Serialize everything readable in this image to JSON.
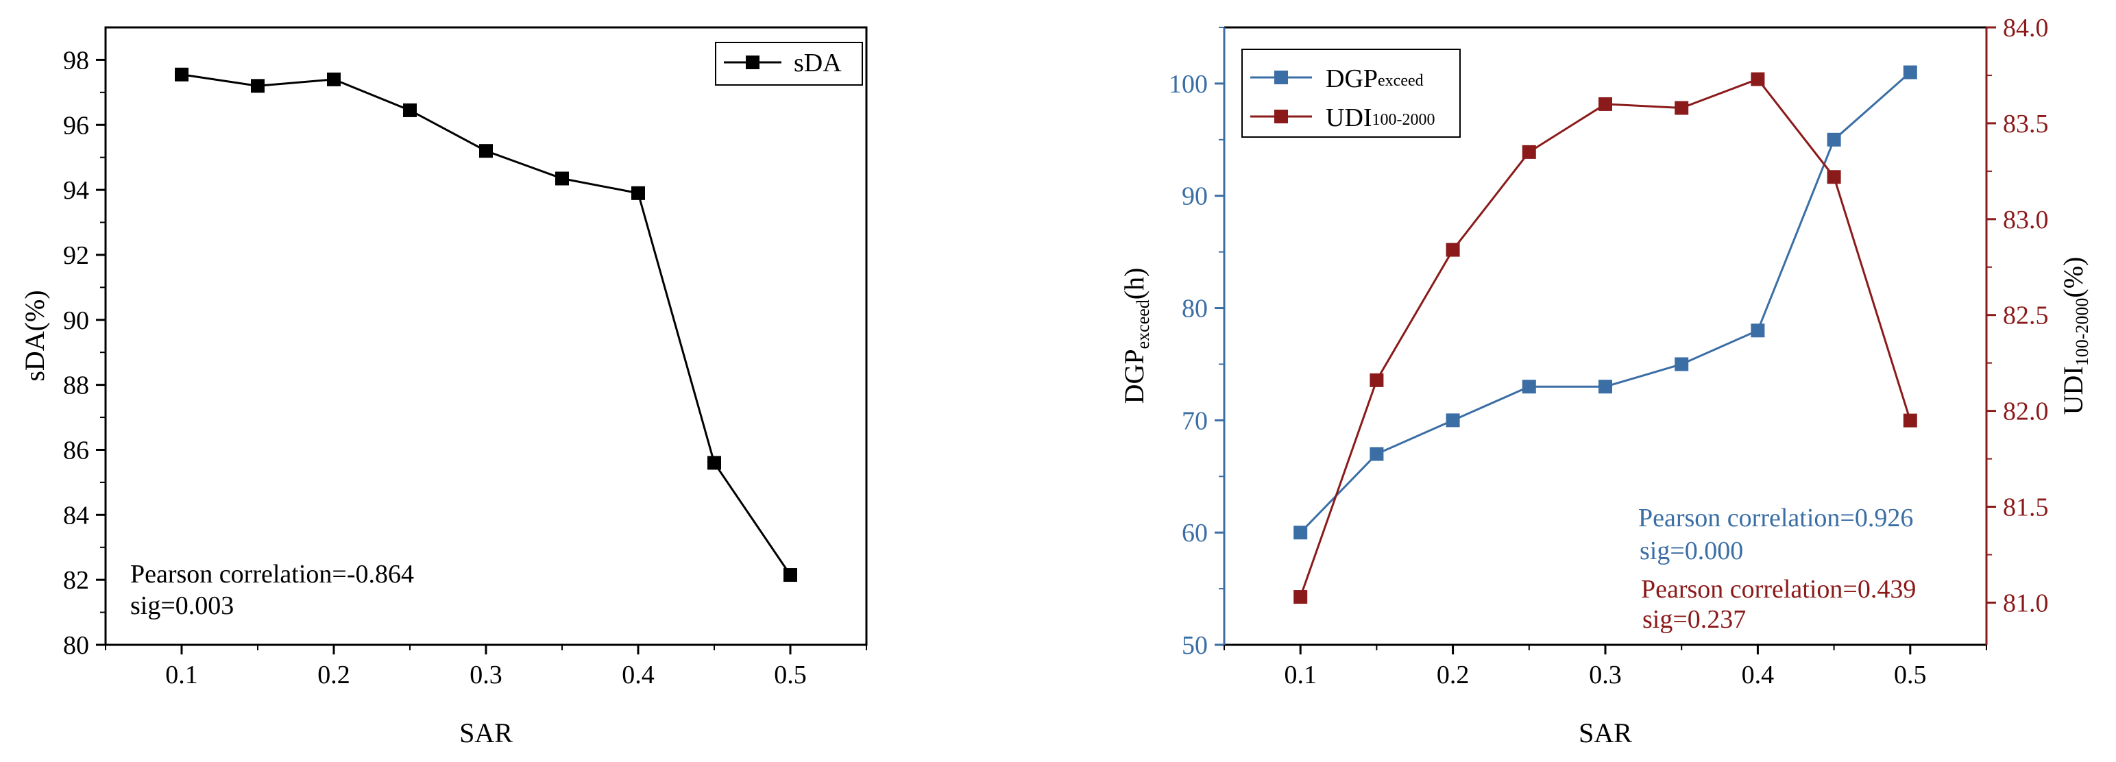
{
  "chart_data": [
    {
      "type": "line",
      "xlabel": "SAR",
      "ylabel": "sDA(%)",
      "x": [
        0.1,
        0.15,
        0.2,
        0.25,
        0.3,
        0.35,
        0.4,
        0.45,
        0.5
      ],
      "xlim": [
        0.05,
        0.55
      ],
      "xticks": [
        "0.1",
        "0.2",
        "0.3",
        "0.4",
        "0.5"
      ],
      "ylim": [
        80,
        99
      ],
      "yticks": [
        "80",
        "82",
        "84",
        "86",
        "88",
        "90",
        "92",
        "94",
        "96",
        "98"
      ],
      "series": [
        {
          "name": "sDA",
          "values": [
            97.55,
            97.2,
            97.4,
            96.45,
            95.2,
            94.35,
            93.9,
            85.6,
            82.15
          ]
        }
      ],
      "legend": "top-right",
      "annotation": {
        "line1": "Pearson correlation=-0.864",
        "line2": "sig=0.003"
      },
      "colors": {
        "line": "#000000"
      }
    },
    {
      "type": "line",
      "xlabel": "SAR",
      "x": [
        0.1,
        0.15,
        0.2,
        0.25,
        0.3,
        0.35,
        0.4,
        0.45,
        0.5
      ],
      "xlim": [
        0.05,
        0.55
      ],
      "xticks": [
        "0.1",
        "0.2",
        "0.3",
        "0.4",
        "0.5"
      ],
      "ylabel_left": {
        "main": "DGP",
        "sub": "exceed",
        "tail": "(h)"
      },
      "ylabel_right": {
        "main": "UDI",
        "sub": "100-2000",
        "tail": "(%)"
      },
      "ylim_left": [
        50,
        105
      ],
      "yticks_left": [
        "50",
        "60",
        "70",
        "80",
        "90",
        "100"
      ],
      "ylim_right": [
        80.78,
        84.0
      ],
      "yticks_right": [
        "81.0",
        "81.5",
        "82.0",
        "82.5",
        "83.0",
        "83.5",
        "84.0"
      ],
      "series": [
        {
          "name": "DGP",
          "sub": "exceed",
          "axis": "left",
          "color": "#3a6ea5",
          "values": [
            60,
            67,
            70,
            73,
            73,
            75,
            78,
            95,
            101
          ]
        },
        {
          "name": "UDI",
          "sub": "100-2000",
          "axis": "right",
          "color": "#8b1a1a",
          "values": [
            81.03,
            82.16,
            82.84,
            83.35,
            83.6,
            83.58,
            83.73,
            83.22,
            81.95
          ]
        }
      ],
      "legend": "top-left",
      "annotations": [
        {
          "line1": "Pearson correlation=0.926",
          "line2": "sig=0.000",
          "color": "#3a6ea5"
        },
        {
          "line1": "Pearson correlation=0.439",
          "line2": "sig=0.237",
          "color": "#8b1a1a"
        }
      ]
    }
  ]
}
